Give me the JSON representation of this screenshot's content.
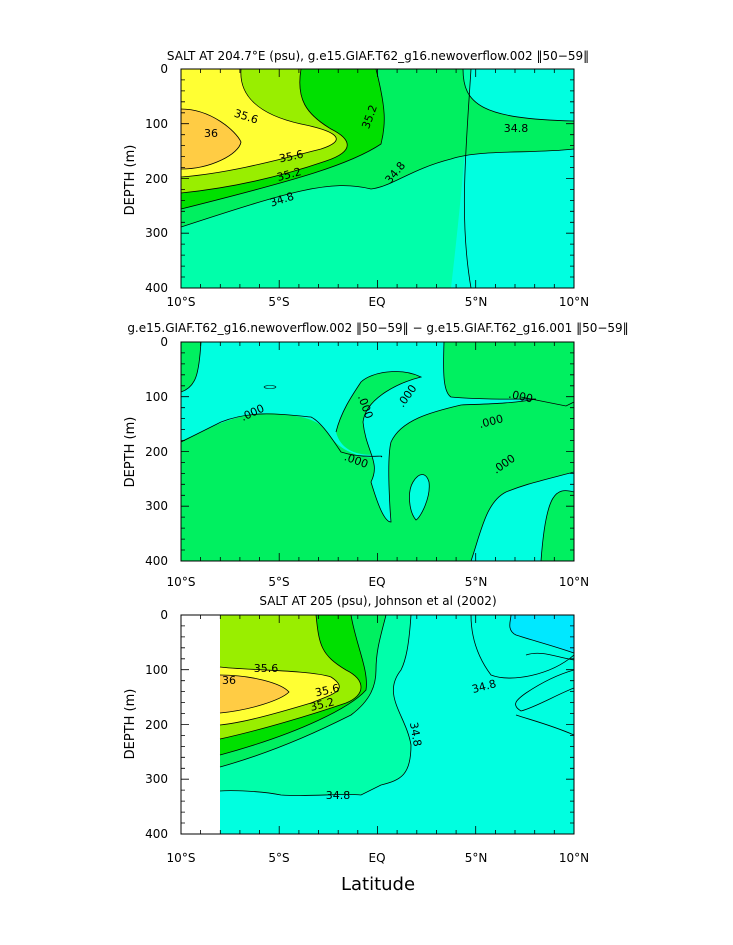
{
  "chart_data": [
    {
      "type": "contour",
      "title": "SALT AT 204.7°E (psu), g.e15.GIAF.T62_g16.newoverflow.002 ‖50−59‖",
      "ylabel": "DEPTH (m)",
      "xlabel": "",
      "x_ticks": [
        "10°S",
        "5°S",
        "EQ",
        "5°N",
        "10°N"
      ],
      "y_ticks": [
        "0",
        "100",
        "200",
        "300",
        "400"
      ],
      "xlim": [
        -10,
        10
      ],
      "ylim": [
        400,
        0
      ],
      "contour_labels": [
        "35.6",
        "36",
        "35.6",
        "35.2",
        "35.2",
        "34.8",
        "34.8",
        "34.8"
      ]
    },
    {
      "type": "contour",
      "title": "g.e15.GIAF.T62_g16.newoverflow.002 ‖50−59‖ − g.e15.GIAF.T62_g16.001 ‖50−59‖",
      "ylabel": "DEPTH (m)",
      "xlabel": "",
      "x_ticks": [
        "10°S",
        "5°S",
        "EQ",
        "5°N",
        "10°N"
      ],
      "y_ticks": [
        "0",
        "100",
        "200",
        "300",
        "400"
      ],
      "xlim": [
        -10,
        10
      ],
      "ylim": [
        400,
        0
      ],
      "contour_labels": [
        ".000",
        ".000",
        ".000",
        ".000",
        ".000",
        ".000",
        ".000"
      ]
    },
    {
      "type": "contour",
      "title": "SALT AT 205 (psu), Johnson et al (2002)",
      "ylabel": "DEPTH (m)",
      "xlabel": "Latitude",
      "x_ticks": [
        "10°S",
        "5°S",
        "EQ",
        "5°N",
        "10°N"
      ],
      "y_ticks": [
        "0",
        "100",
        "200",
        "300",
        "400"
      ],
      "xlim": [
        -10,
        10
      ],
      "ylim": [
        400,
        0
      ],
      "contour_labels": [
        "35.6",
        "36",
        "35.6",
        "35.2",
        "34.8",
        "34.8",
        "34.8"
      ]
    }
  ]
}
